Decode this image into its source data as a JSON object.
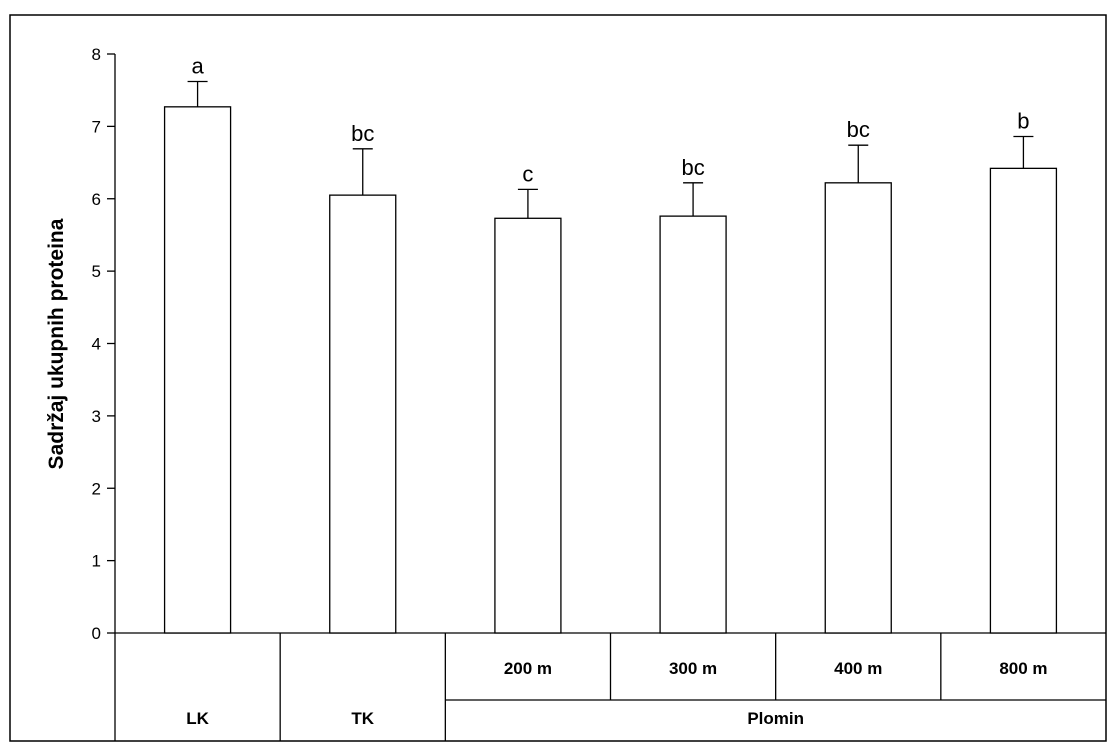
{
  "chart_data": {
    "type": "bar",
    "title": "",
    "xlabel": "",
    "ylabel": "Sadržaj ukupnih proteina",
    "ylim": [
      0,
      8
    ],
    "yticks": [
      0,
      1,
      2,
      3,
      4,
      5,
      6,
      7,
      8
    ],
    "grid": false,
    "categories": [
      "LK",
      "TK",
      "200 m",
      "300 m",
      "400 m",
      "800 m"
    ],
    "values": [
      7.27,
      6.05,
      5.73,
      5.76,
      6.22,
      6.42
    ],
    "errors": [
      0.35,
      0.64,
      0.4,
      0.46,
      0.52,
      0.44
    ],
    "significance_labels": [
      "a",
      "bc",
      "c",
      "bc",
      "bc",
      "b"
    ],
    "group_labels": [
      {
        "label": "LK",
        "span": [
          0,
          0
        ]
      },
      {
        "label": "TK",
        "span": [
          1,
          1
        ]
      },
      {
        "label": "Plomin",
        "span": [
          2,
          5
        ]
      }
    ],
    "colors": {
      "bar_fill": "#ffffff",
      "bar_stroke": "#000000"
    }
  }
}
